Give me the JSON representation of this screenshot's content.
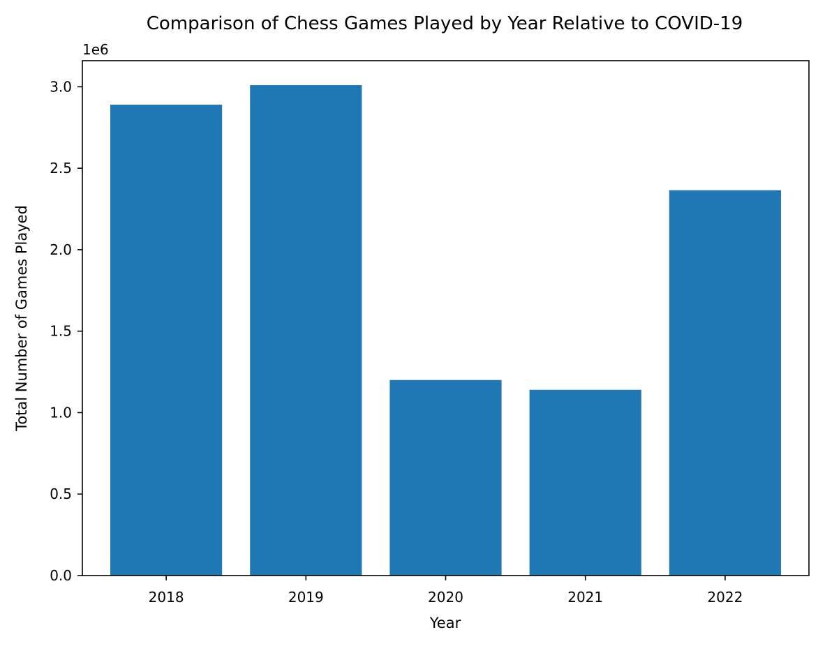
{
  "chart_data": {
    "type": "bar",
    "title": "Comparison of Chess Games Played by Year Relative to COVID-19",
    "xlabel": "Year",
    "ylabel": "Total Number of Games Played",
    "y_offset_label": "1e6",
    "categories": [
      "2018",
      "2019",
      "2020",
      "2021",
      "2022"
    ],
    "values": [
      2890000,
      3010000,
      1200000,
      1140000,
      2365000
    ],
    "ylim": [
      0,
      3160000
    ],
    "yticks": [
      0,
      500000,
      1000000,
      1500000,
      2000000,
      2500000,
      3000000
    ],
    "ytick_labels": [
      "0.0",
      "0.5",
      "1.0",
      "1.5",
      "2.0",
      "2.5",
      "3.0"
    ],
    "grid": false,
    "legend": "none",
    "bar_color": "#1f77b4"
  }
}
